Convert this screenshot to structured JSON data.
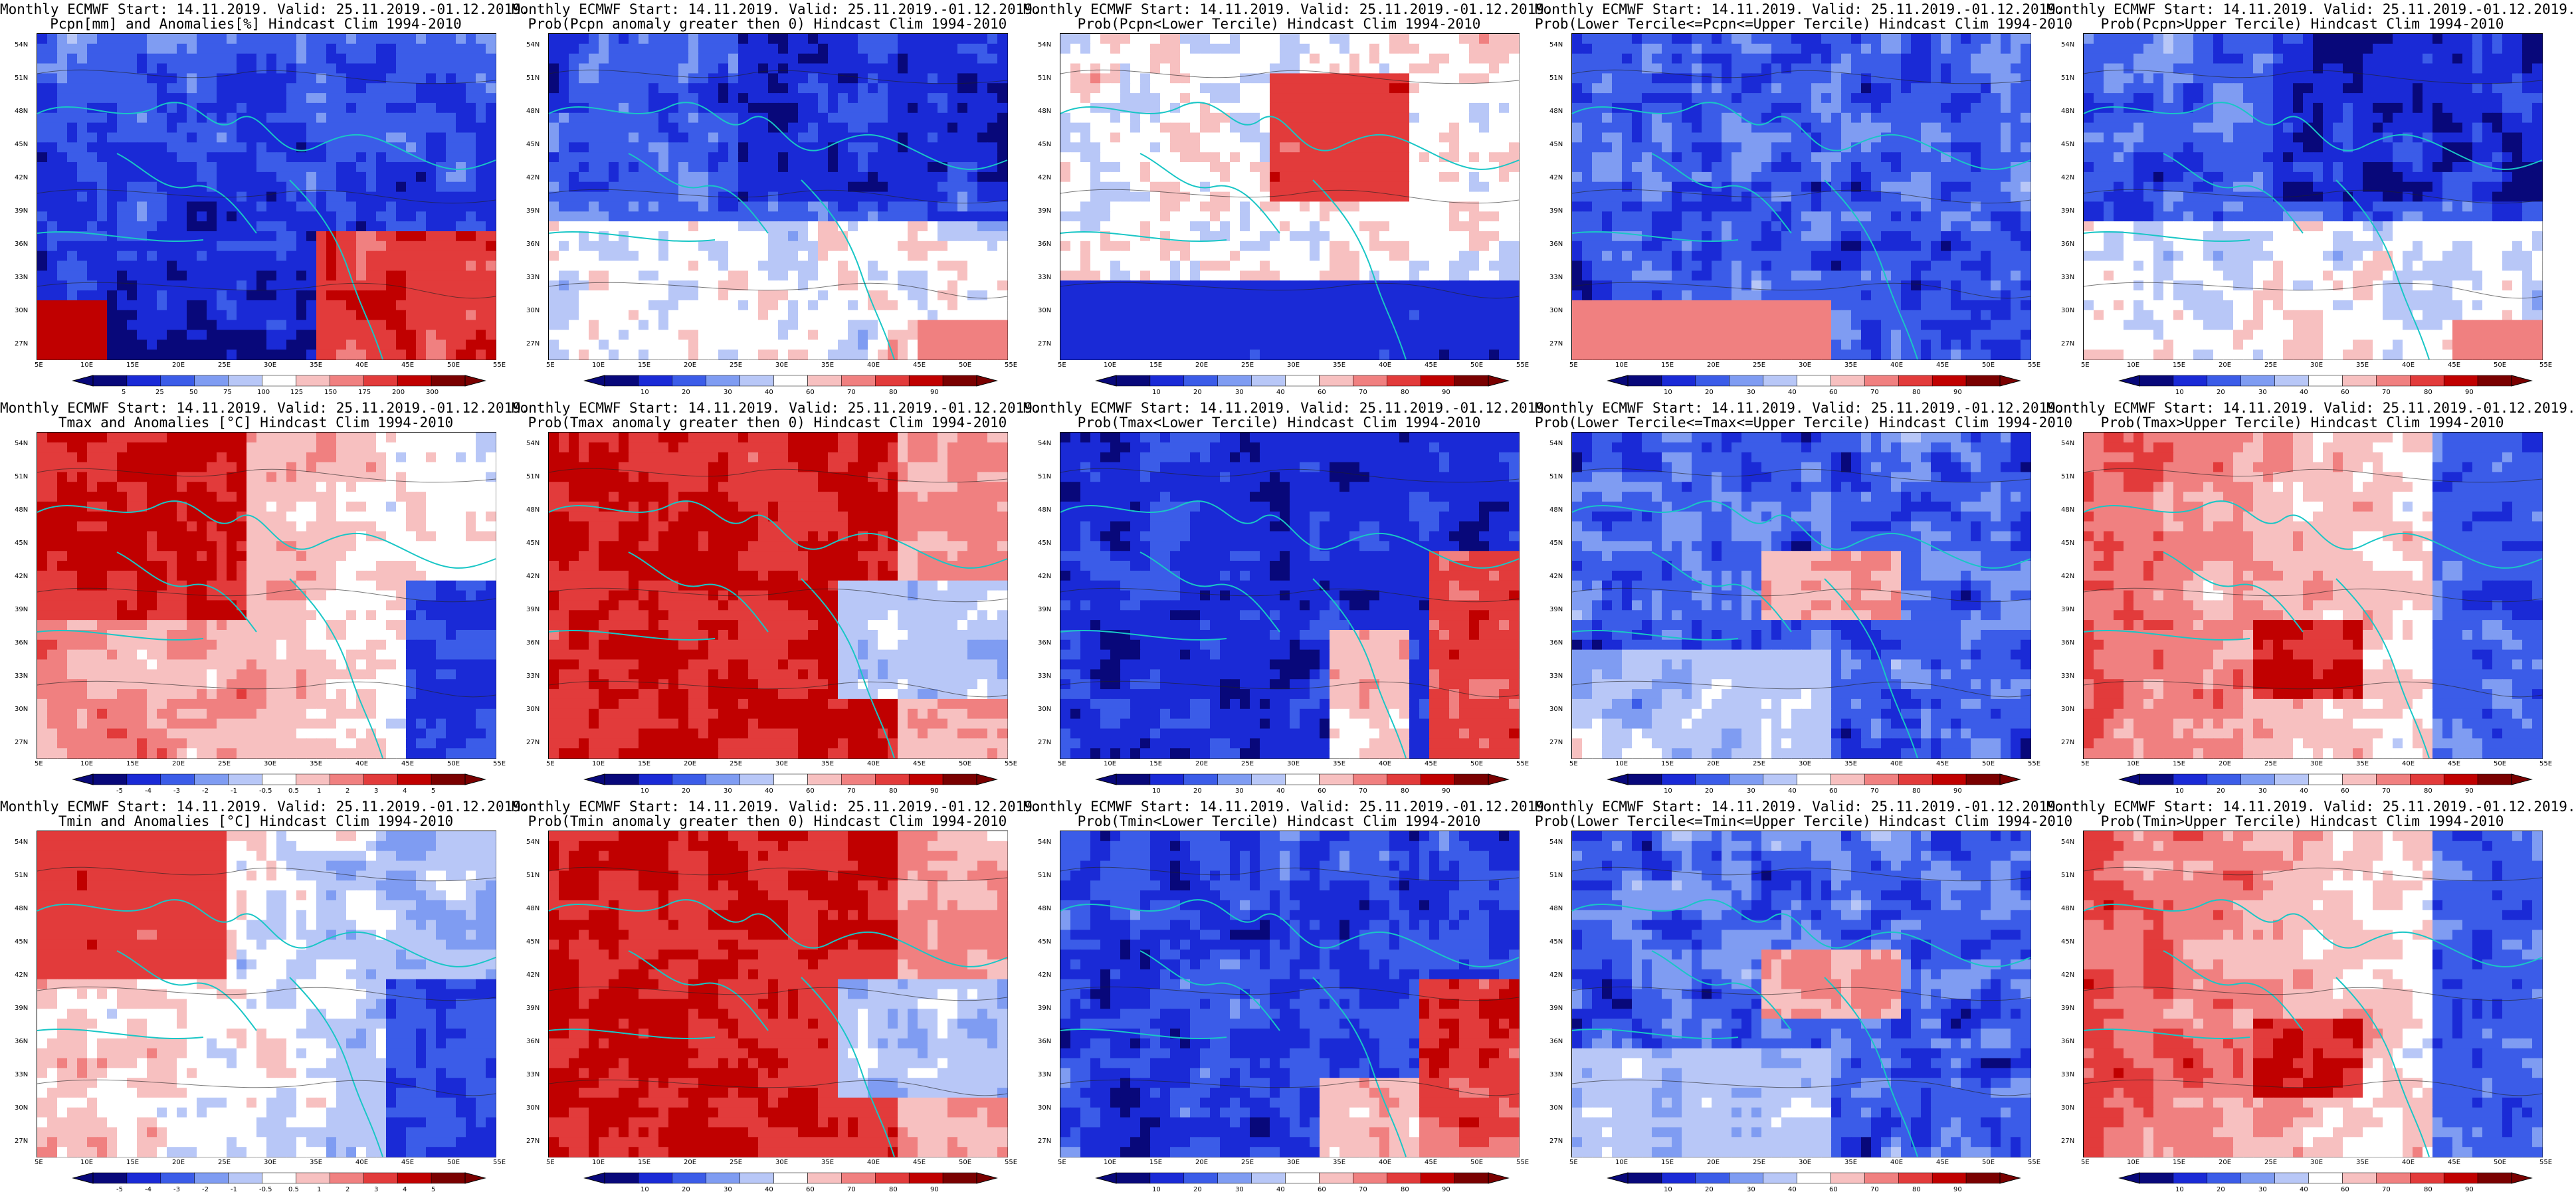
{
  "panels": [
    {
      "row": 0,
      "col": 0,
      "title1": "Monthly ECMWF Start: 14.11.2019. Valid: 25.11.2019.-01.12.2019.",
      "title2": "Pcpn[mm] and Anomalies[%] Hindcast Clim 1994-2010",
      "scheme": "precip",
      "colorbar": [
        "5",
        "25",
        "50",
        "75",
        "100",
        "125",
        "150",
        "175",
        "200",
        "300"
      ]
    },
    {
      "row": 0,
      "col": 1,
      "title1": "Monthly ECMWF Start: 14.11.2019. Valid: 25.11.2019.-01.12.2019.",
      "title2": "Prob(Pcpn anomaly greater then 0) Hindcast Clim 1994-2010",
      "scheme": "prob_blue",
      "colorbar": [
        "10",
        "20",
        "30",
        "40",
        "60",
        "70",
        "80",
        "90"
      ]
    },
    {
      "row": 0,
      "col": 2,
      "title1": "Monthly ECMWF Start: 14.11.2019. Valid: 25.11.2019.-01.12.2019.",
      "title2": "Prob(Pcpn<Lower Tercile) Hindcast Clim 1994-2010",
      "scheme": "prob_lower_p",
      "colorbar": [
        "10",
        "20",
        "30",
        "40",
        "60",
        "70",
        "80",
        "90"
      ]
    },
    {
      "row": 0,
      "col": 3,
      "title1": "Monthly ECMWF Start: 14.11.2019. Valid: 25.11.2019.-01.12.2019.",
      "title2": "Prob(Lower Tercile<=Pcpn<=Upper Tercile) Hindcast Clim 1994-2010",
      "scheme": "prob_mid_p",
      "colorbar": [
        "10",
        "20",
        "30",
        "40",
        "60",
        "70",
        "80",
        "90"
      ]
    },
    {
      "row": 0,
      "col": 4,
      "title1": "Monthly ECMWF Start: 14.11.2019. Valid: 25.11.2019.-01.12.2019.",
      "title2": "Prob(Pcpn>Upper Tercile) Hindcast Clim 1994-2010",
      "scheme": "prob_blue",
      "colorbar": [
        "10",
        "20",
        "30",
        "40",
        "60",
        "70",
        "80",
        "90"
      ]
    },
    {
      "row": 1,
      "col": 0,
      "title1": "Monthly ECMWF Start: 14.11.2019. Valid: 25.11.2019.-01.12.2019.",
      "title2": "Tmax and Anomalies [°C] Hindcast Clim 1994-2010",
      "scheme": "anom_warm",
      "colorbar": [
        "-5",
        "-4",
        "-3",
        "-2",
        "-1",
        "-0.5",
        "0.5",
        "1",
        "2",
        "3",
        "4",
        "5"
      ]
    },
    {
      "row": 1,
      "col": 1,
      "title1": "Monthly ECMWF Start: 14.11.2019. Valid: 25.11.2019.-01.12.2019.",
      "title2": "Prob(Tmax anomaly greater then 0) Hindcast Clim 1994-2010",
      "scheme": "prob_red",
      "colorbar": [
        "10",
        "20",
        "30",
        "40",
        "60",
        "70",
        "80",
        "90"
      ]
    },
    {
      "row": 1,
      "col": 2,
      "title1": "Monthly ECMWF Start: 14.11.2019. Valid: 25.11.2019.-01.12.2019.",
      "title2": "Prob(Tmax<Lower Tercile) Hindcast Clim 1994-2010",
      "scheme": "prob_blue_deep",
      "colorbar": [
        "10",
        "20",
        "30",
        "40",
        "60",
        "70",
        "80",
        "90"
      ]
    },
    {
      "row": 1,
      "col": 3,
      "title1": "Monthly ECMWF Start: 14.11.2019. Valid: 25.11.2019.-01.12.2019.",
      "title2": "Prob(Lower Tercile<=Tmax<=Upper Tercile) Hindcast Clim 1994-2010",
      "scheme": "prob_blue_mix",
      "colorbar": [
        "10",
        "20",
        "30",
        "40",
        "60",
        "70",
        "80",
        "90"
      ]
    },
    {
      "row": 1,
      "col": 4,
      "title1": "Monthly ECMWF Start: 14.11.2019. Valid: 25.11.2019.-01.12.2019.",
      "title2": "Prob(Tmax>Upper Tercile) Hindcast Clim 1994-2010",
      "scheme": "prob_red_mix",
      "colorbar": [
        "10",
        "20",
        "30",
        "40",
        "60",
        "70",
        "80",
        "90"
      ]
    },
    {
      "row": 2,
      "col": 0,
      "title1": "Monthly ECMWF Start: 14.11.2019. Valid: 25.11.2019.-01.12.2019.",
      "title2": "Tmin and Anomalies [°C] Hindcast Clim 1994-2010",
      "scheme": "anom_mix",
      "colorbar": [
        "-5",
        "-4",
        "-3",
        "-2",
        "-1",
        "-0.5",
        "0.5",
        "1",
        "2",
        "3",
        "4",
        "5"
      ]
    },
    {
      "row": 2,
      "col": 1,
      "title1": "Monthly ECMWF Start: 14.11.2019. Valid: 25.11.2019.-01.12.2019.",
      "title2": "Prob(Tmin anomaly greater then 0) Hindcast Clim 1994-2010",
      "scheme": "prob_red",
      "colorbar": [
        "10",
        "20",
        "30",
        "40",
        "60",
        "70",
        "80",
        "90"
      ]
    },
    {
      "row": 2,
      "col": 2,
      "title1": "Monthly ECMWF Start: 14.11.2019. Valid: 25.11.2019.-01.12.2019.",
      "title2": "Prob(Tmin<Lower Tercile) Hindcast Clim 1994-2010",
      "scheme": "prob_blue_deep2",
      "colorbar": [
        "10",
        "20",
        "30",
        "40",
        "60",
        "70",
        "80",
        "90"
      ]
    },
    {
      "row": 2,
      "col": 3,
      "title1": "Monthly ECMWF Start: 14.11.2019. Valid: 25.11.2019.-01.12.2019.",
      "title2": "Prob(Lower Tercile<=Tmin<=Upper Tercile) Hindcast Clim 1994-2010",
      "scheme": "prob_blue_mix",
      "colorbar": [
        "10",
        "20",
        "30",
        "40",
        "60",
        "70",
        "80",
        "90"
      ]
    },
    {
      "row": 2,
      "col": 4,
      "title1": "Monthly ECMWF Start: 14.11.2019. Valid: 25.11.2019.-01.12.2019.",
      "title2": "Prob(Tmin>Upper Tercile) Hindcast Clim 1994-2010",
      "scheme": "prob_red_mix",
      "colorbar": [
        "10",
        "20",
        "30",
        "40",
        "60",
        "70",
        "80",
        "90"
      ]
    }
  ],
  "lat_labels": [
    "54N",
    "51N",
    "48N",
    "45N",
    "42N",
    "39N",
    "36N",
    "33N",
    "30N",
    "27N"
  ],
  "lon_labels": [
    "5E",
    "10E",
    "15E",
    "20E",
    "25E",
    "30E",
    "35E",
    "40E",
    "45E",
    "50E",
    "55E"
  ],
  "palettes": {
    "blue_red": [
      "#08087a",
      "#1a2ad6",
      "#3b5ce8",
      "#7f9cf2",
      "#b8c7f7",
      "#ffffff",
      "#f7c0c0",
      "#f08080",
      "#e23b3b",
      "#c00000",
      "#7a0000"
    ]
  }
}
